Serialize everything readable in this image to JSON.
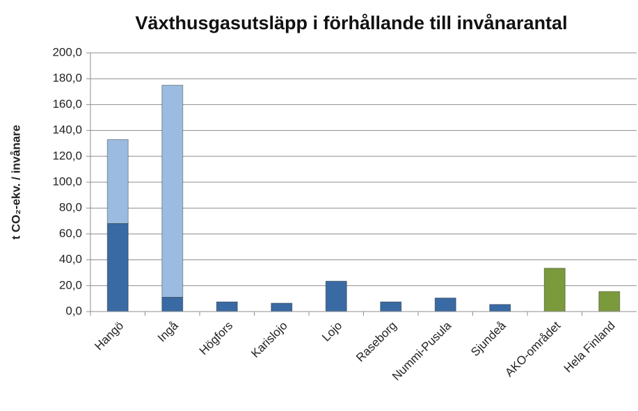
{
  "chart_data": {
    "type": "bar",
    "stacked": true,
    "title": "Växthusgasutsläpp i förhållande till invånarantal",
    "y_label": "t CO₂-ekv. / invånare",
    "categories": [
      "Hangö",
      "Ingå",
      "Högfors",
      "Karislojo",
      "Lojo",
      "Raseborg",
      "Nummi-Pusula",
      "Sjundeå",
      "AKO-området",
      "Hela Finland"
    ],
    "series": [
      {
        "colors": [
          "#3a6aa3",
          "#3a6aa3",
          "#3a6aa3",
          "#3a6aa3",
          "#3a6aa3",
          "#3a6aa3",
          "#3a6aa3",
          "#3a6aa3",
          "#7a9a3c",
          "#7a9a3c"
        ],
        "values": [
          68,
          11,
          7.5,
          6.5,
          23.5,
          7.5,
          10.5,
          5.5,
          33.5,
          15.5
        ]
      },
      {
        "colors": [
          "#9bbbe0",
          "#9bbbe0",
          null,
          null,
          null,
          null,
          null,
          null,
          null,
          null
        ],
        "values": [
          65,
          164,
          null,
          null,
          null,
          null,
          null,
          null,
          null,
          null
        ]
      }
    ],
    "ylim": [
      0,
      200
    ],
    "yticks": [
      {
        "value": 0,
        "label": "0,0"
      },
      {
        "value": 20,
        "label": "20,0"
      },
      {
        "value": 40,
        "label": "40,0"
      },
      {
        "value": 60,
        "label": "60,0"
      },
      {
        "value": 80,
        "label": "80,0"
      },
      {
        "value": 100,
        "label": "100,0"
      },
      {
        "value": 120,
        "label": "120,0"
      },
      {
        "value": 140,
        "label": "140,0"
      },
      {
        "value": 160,
        "label": "160,0"
      },
      {
        "value": 180,
        "label": "180,0"
      },
      {
        "value": 200,
        "label": "200,0"
      }
    ],
    "grid": true
  }
}
